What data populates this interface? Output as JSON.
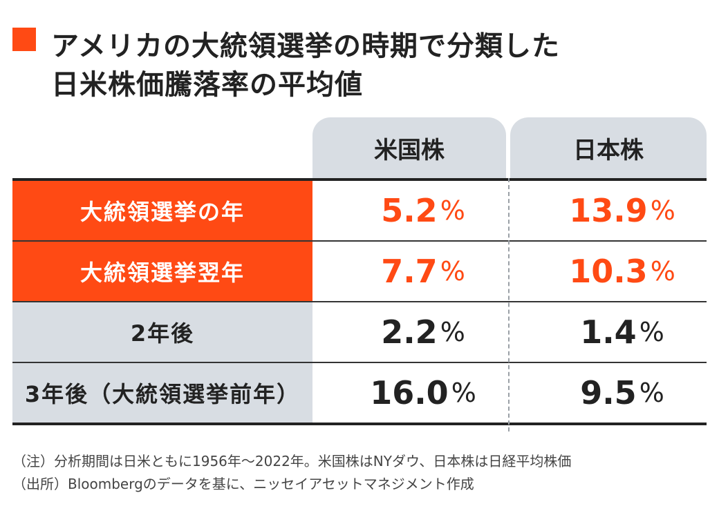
{
  "title": {
    "line1": "アメリカの大統領選挙の時期で分類した",
    "line2": "日米株価騰落率の平均値",
    "marker_color": "#ff4a14"
  },
  "chart_data": {
    "type": "table",
    "columns": [
      "米国株",
      "日本株"
    ],
    "unit": "%",
    "rows": [
      {
        "label": "大統領選挙の年",
        "values": [
          "5.2",
          "13.9"
        ],
        "highlight": true
      },
      {
        "label": "大統領選挙翌年",
        "values": [
          "7.7",
          "10.3"
        ],
        "highlight": true
      },
      {
        "label": "2年後",
        "values": [
          "2.2",
          "1.4"
        ],
        "highlight": false
      },
      {
        "label": "3年後（大統領選挙前年）",
        "values": [
          "16.0",
          "9.5"
        ],
        "highlight": false
      }
    ],
    "highlight_color": "#ff4a14",
    "header_bg": "#d8dde3"
  },
  "notes": {
    "note1": "（注）分析期間は日米ともに1956年〜2022年。米国株はNYダウ、日本株は日経平均株価",
    "note2": "（出所）Bloombergのデータを基に、ニッセイアセットマネジメント作成"
  }
}
